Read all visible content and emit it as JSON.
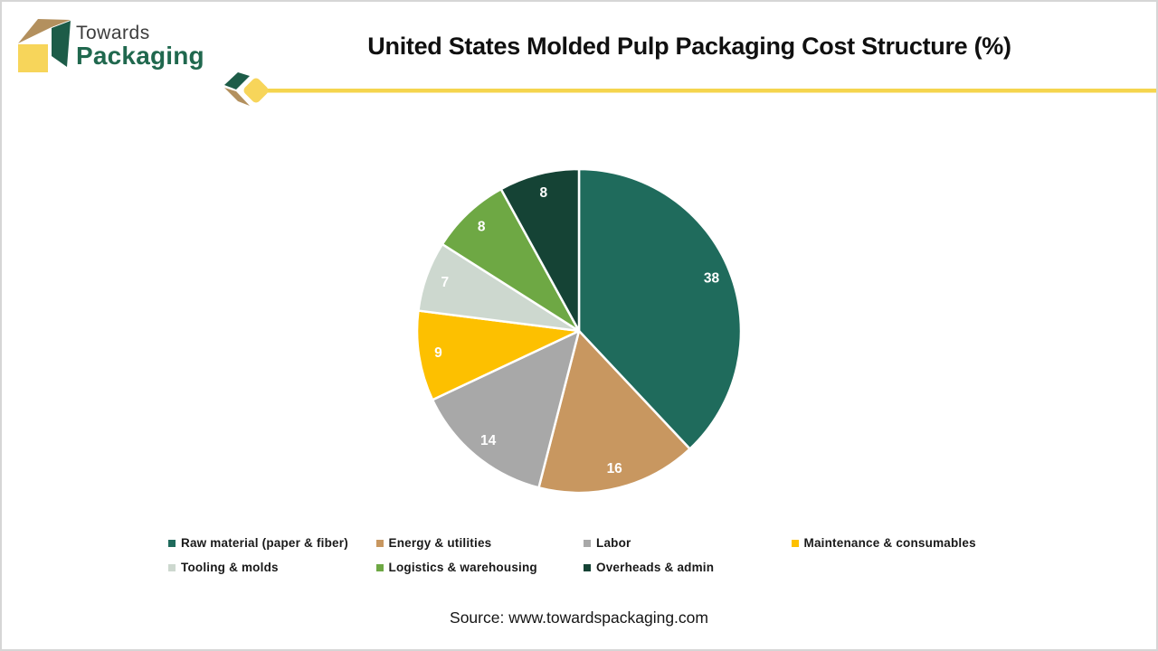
{
  "page": {
    "background": "#ffffff",
    "border_color": "#d6d6d6"
  },
  "brand": {
    "logo_text_top": "Towards",
    "logo_text_bottom": "Packaging",
    "logo_colors": {
      "top_face": "#b3905e",
      "side_face": "#1d5c48",
      "front_face": "#f7d55a",
      "text_top": "#3d3d3d",
      "text_bottom": "#20684e"
    }
  },
  "header": {
    "title": "United States Molded Pulp Packaging Cost Structure (%)",
    "divider_color": "#f5d54e",
    "accent_green": "#1d5c48",
    "accent_tan": "#b3905e",
    "accent_yellow": "#f7d55a"
  },
  "chart_data": {
    "type": "pie",
    "title": "United States Molded Pulp Packaging Cost Structure (%)",
    "categories": [
      "Raw material (paper & fiber)",
      "Energy & utilities",
      "Labor",
      "Maintenance & consumables",
      "Tooling & molds",
      "Logistics & warehousing",
      "Overheads & admin"
    ],
    "values": [
      38,
      16,
      14,
      9,
      7,
      8,
      8
    ],
    "colors": [
      "#1f6b5c",
      "#c89760",
      "#a8a8a8",
      "#fdc000",
      "#cdd8cf",
      "#6ea844",
      "#154335"
    ],
    "start_angle_deg": 0,
    "direction": "clockwise",
    "value_labels_position": "inside",
    "value_label_color": "#ffffff",
    "slice_border_color": "#ffffff",
    "legend_position": "bottom"
  },
  "footer": {
    "source": "Source: www.towardspackaging.com"
  }
}
